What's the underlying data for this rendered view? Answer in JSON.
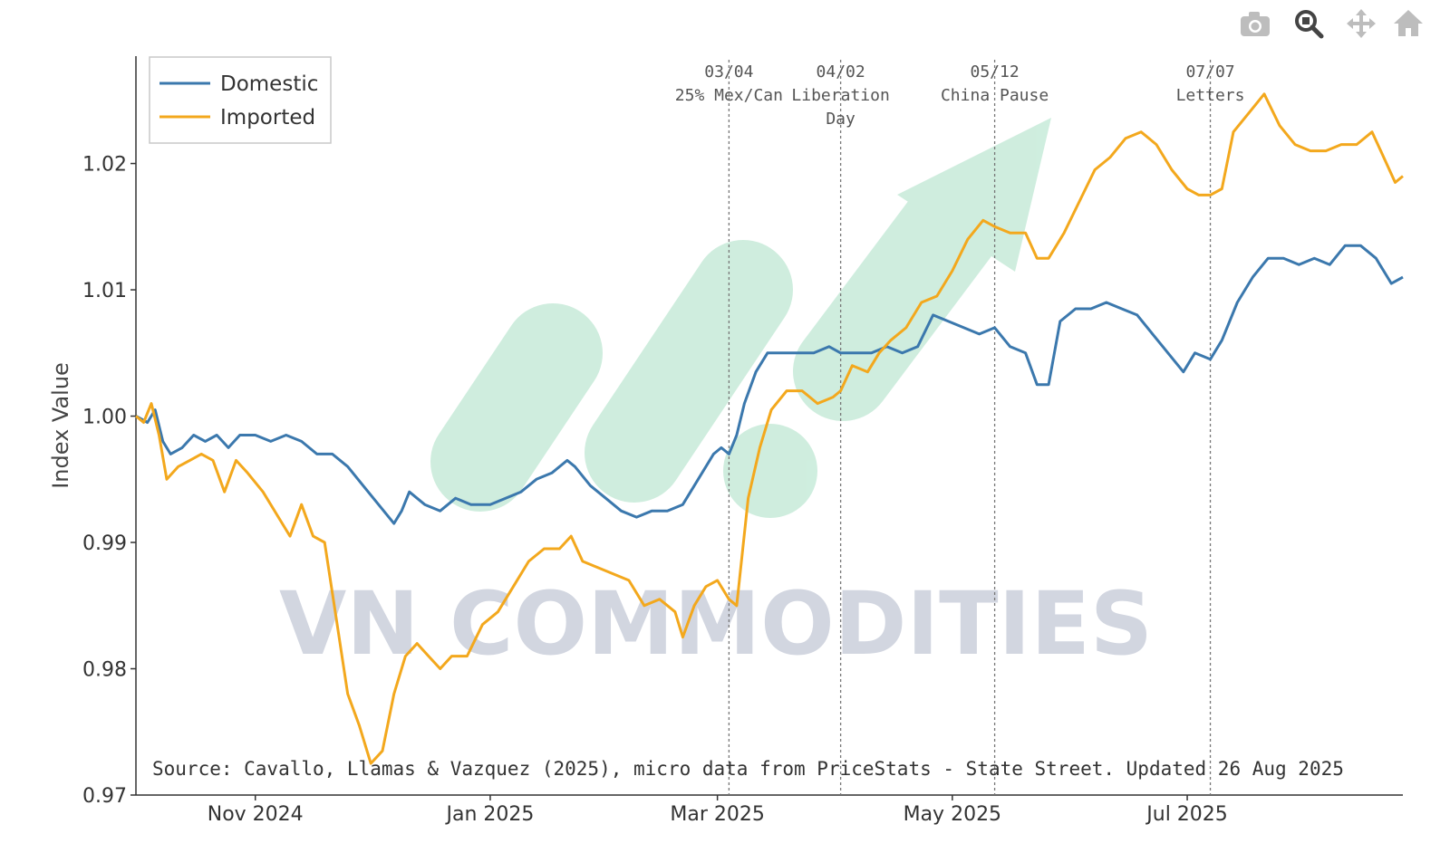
{
  "modebar": {
    "icons": [
      "camera-icon",
      "zoom-icon",
      "pan-icon",
      "home-icon"
    ],
    "active": "zoom-icon"
  },
  "watermark": {
    "text": "VN COMMODITIES",
    "logo_color": "#a8e0c4"
  },
  "source_note": "Source: Cavallo, Llamas & Vazquez (2025), micro data from PriceStats - State Street. Updated 26 Aug 2025",
  "chart_data": {
    "type": "line",
    "ylabel": "Index Value",
    "xlabel": "",
    "ylim": [
      0.97,
      1.0285
    ],
    "xlim": [
      "2024-10-01",
      "2025-08-26"
    ],
    "x_ticks": [
      {
        "date": "2024-11-01",
        "label": "Nov 2024"
      },
      {
        "date": "2025-01-01",
        "label": "Jan 2025"
      },
      {
        "date": "2025-03-01",
        "label": "Mar 2025"
      },
      {
        "date": "2025-05-01",
        "label": "May 2025"
      },
      {
        "date": "2025-07-01",
        "label": "Jul 2025"
      }
    ],
    "y_ticks": [
      {
        "value": 0.97,
        "label": "0.97"
      },
      {
        "value": 0.98,
        "label": "0.98"
      },
      {
        "value": 0.99,
        "label": "0.99"
      },
      {
        "value": 1.0,
        "label": "1.00"
      },
      {
        "value": 1.01,
        "label": "1.01"
      },
      {
        "value": 1.02,
        "label": "1.02"
      }
    ],
    "grid": false,
    "legend_position": "top-left",
    "annotations": [
      {
        "date": "2025-03-04",
        "lines": [
          "03/04",
          "25% Mex/Can"
        ]
      },
      {
        "date": "2025-04-02",
        "lines": [
          "04/02",
          "Liberation",
          "Day"
        ]
      },
      {
        "date": "2025-05-12",
        "lines": [
          "05/12",
          "China Pause"
        ]
      },
      {
        "date": "2025-07-07",
        "lines": [
          "07/07",
          "Letters"
        ]
      }
    ],
    "series": [
      {
        "name": "Domestic",
        "color": "#3b78ad",
        "points": [
          [
            "2024-10-01",
            1.0
          ],
          [
            "2024-10-04",
            0.9995
          ],
          [
            "2024-10-06",
            1.0005
          ],
          [
            "2024-10-08",
            0.998
          ],
          [
            "2024-10-10",
            0.997
          ],
          [
            "2024-10-13",
            0.9975
          ],
          [
            "2024-10-16",
            0.9985
          ],
          [
            "2024-10-19",
            0.998
          ],
          [
            "2024-10-22",
            0.9985
          ],
          [
            "2024-10-25",
            0.9975
          ],
          [
            "2024-10-28",
            0.9985
          ],
          [
            "2024-11-01",
            0.9985
          ],
          [
            "2024-11-05",
            0.998
          ],
          [
            "2024-11-09",
            0.9985
          ],
          [
            "2024-11-13",
            0.998
          ],
          [
            "2024-11-17",
            0.997
          ],
          [
            "2024-11-21",
            0.997
          ],
          [
            "2024-11-25",
            0.996
          ],
          [
            "2024-11-29",
            0.9945
          ],
          [
            "2024-12-03",
            0.993
          ],
          [
            "2024-12-07",
            0.9915
          ],
          [
            "2024-12-09",
            0.9925
          ],
          [
            "2024-12-11",
            0.994
          ],
          [
            "2024-12-15",
            0.993
          ],
          [
            "2024-12-19",
            0.9925
          ],
          [
            "2024-12-23",
            0.9935
          ],
          [
            "2024-12-27",
            0.993
          ],
          [
            "2025-01-01",
            0.993
          ],
          [
            "2025-01-05",
            0.9935
          ],
          [
            "2025-01-09",
            0.994
          ],
          [
            "2025-01-13",
            0.995
          ],
          [
            "2025-01-17",
            0.9955
          ],
          [
            "2025-01-21",
            0.9965
          ],
          [
            "2025-01-23",
            0.996
          ],
          [
            "2025-01-27",
            0.9945
          ],
          [
            "2025-01-31",
            0.9935
          ],
          [
            "2025-02-04",
            0.9925
          ],
          [
            "2025-02-08",
            0.992
          ],
          [
            "2025-02-12",
            0.9925
          ],
          [
            "2025-02-16",
            0.9925
          ],
          [
            "2025-02-20",
            0.993
          ],
          [
            "2025-02-24",
            0.995
          ],
          [
            "2025-02-28",
            0.997
          ],
          [
            "2025-03-02",
            0.9975
          ],
          [
            "2025-03-04",
            0.997
          ],
          [
            "2025-03-06",
            0.9985
          ],
          [
            "2025-03-08",
            1.001
          ],
          [
            "2025-03-11",
            1.0035
          ],
          [
            "2025-03-14",
            1.005
          ],
          [
            "2025-03-18",
            1.005
          ],
          [
            "2025-03-22",
            1.005
          ],
          [
            "2025-03-26",
            1.005
          ],
          [
            "2025-03-30",
            1.0055
          ],
          [
            "2025-04-02",
            1.005
          ],
          [
            "2025-04-06",
            1.005
          ],
          [
            "2025-04-10",
            1.005
          ],
          [
            "2025-04-14",
            1.0055
          ],
          [
            "2025-04-18",
            1.005
          ],
          [
            "2025-04-22",
            1.0055
          ],
          [
            "2025-04-26",
            1.008
          ],
          [
            "2025-04-30",
            1.0075
          ],
          [
            "2025-05-04",
            1.007
          ],
          [
            "2025-05-08",
            1.0065
          ],
          [
            "2025-05-12",
            1.007
          ],
          [
            "2025-05-16",
            1.0055
          ],
          [
            "2025-05-20",
            1.005
          ],
          [
            "2025-05-23",
            1.0025
          ],
          [
            "2025-05-26",
            1.0025
          ],
          [
            "2025-05-29",
            1.0075
          ],
          [
            "2025-06-02",
            1.0085
          ],
          [
            "2025-06-06",
            1.0085
          ],
          [
            "2025-06-10",
            1.009
          ],
          [
            "2025-06-14",
            1.0085
          ],
          [
            "2025-06-18",
            1.008
          ],
          [
            "2025-06-22",
            1.0065
          ],
          [
            "2025-06-26",
            1.005
          ],
          [
            "2025-06-30",
            1.0035
          ],
          [
            "2025-07-03",
            1.005
          ],
          [
            "2025-07-07",
            1.0045
          ],
          [
            "2025-07-10",
            1.006
          ],
          [
            "2025-07-14",
            1.009
          ],
          [
            "2025-07-18",
            1.011
          ],
          [
            "2025-07-22",
            1.0125
          ],
          [
            "2025-07-26",
            1.0125
          ],
          [
            "2025-07-30",
            1.012
          ],
          [
            "2025-08-03",
            1.0125
          ],
          [
            "2025-08-07",
            1.012
          ],
          [
            "2025-08-11",
            1.0135
          ],
          [
            "2025-08-15",
            1.0135
          ],
          [
            "2025-08-19",
            1.0125
          ],
          [
            "2025-08-23",
            1.0105
          ],
          [
            "2025-08-26",
            1.011
          ]
        ]
      },
      {
        "name": "Imported",
        "color": "#f3a81d",
        "points": [
          [
            "2024-10-01",
            1.0
          ],
          [
            "2024-10-03",
            0.9995
          ],
          [
            "2024-10-05",
            1.001
          ],
          [
            "2024-10-07",
            0.9985
          ],
          [
            "2024-10-09",
            0.995
          ],
          [
            "2024-10-12",
            0.996
          ],
          [
            "2024-10-15",
            0.9965
          ],
          [
            "2024-10-18",
            0.997
          ],
          [
            "2024-10-21",
            0.9965
          ],
          [
            "2024-10-24",
            0.994
          ],
          [
            "2024-10-27",
            0.9965
          ],
          [
            "2024-10-30",
            0.9955
          ],
          [
            "2024-11-03",
            0.994
          ],
          [
            "2024-11-07",
            0.992
          ],
          [
            "2024-11-10",
            0.9905
          ],
          [
            "2024-11-13",
            0.993
          ],
          [
            "2024-11-16",
            0.9905
          ],
          [
            "2024-11-19",
            0.99
          ],
          [
            "2024-11-22",
            0.984
          ],
          [
            "2024-11-25",
            0.978
          ],
          [
            "2024-11-28",
            0.9755
          ],
          [
            "2024-12-01",
            0.9725
          ],
          [
            "2024-12-04",
            0.9735
          ],
          [
            "2024-12-07",
            0.978
          ],
          [
            "2024-12-10",
            0.981
          ],
          [
            "2024-12-13",
            0.982
          ],
          [
            "2024-12-16",
            0.981
          ],
          [
            "2024-12-19",
            0.98
          ],
          [
            "2024-12-22",
            0.981
          ],
          [
            "2024-12-26",
            0.981
          ],
          [
            "2024-12-30",
            0.9835
          ],
          [
            "2025-01-03",
            0.9845
          ],
          [
            "2025-01-07",
            0.9865
          ],
          [
            "2025-01-11",
            0.9885
          ],
          [
            "2025-01-15",
            0.9895
          ],
          [
            "2025-01-19",
            0.9895
          ],
          [
            "2025-01-22",
            0.9905
          ],
          [
            "2025-01-25",
            0.9885
          ],
          [
            "2025-01-29",
            0.988
          ],
          [
            "2025-02-02",
            0.9875
          ],
          [
            "2025-02-06",
            0.987
          ],
          [
            "2025-02-10",
            0.985
          ],
          [
            "2025-02-14",
            0.9855
          ],
          [
            "2025-02-18",
            0.9845
          ],
          [
            "2025-02-20",
            0.9825
          ],
          [
            "2025-02-23",
            0.985
          ],
          [
            "2025-02-26",
            0.9865
          ],
          [
            "2025-03-01",
            0.987
          ],
          [
            "2025-03-04",
            0.9855
          ],
          [
            "2025-03-06",
            0.985
          ],
          [
            "2025-03-09",
            0.9935
          ],
          [
            "2025-03-12",
            0.9975
          ],
          [
            "2025-03-15",
            1.0005
          ],
          [
            "2025-03-19",
            1.002
          ],
          [
            "2025-03-23",
            1.002
          ],
          [
            "2025-03-27",
            1.001
          ],
          [
            "2025-03-31",
            1.0015
          ],
          [
            "2025-04-02",
            1.002
          ],
          [
            "2025-04-05",
            1.004
          ],
          [
            "2025-04-09",
            1.0035
          ],
          [
            "2025-04-12",
            1.005
          ],
          [
            "2025-04-15",
            1.006
          ],
          [
            "2025-04-19",
            1.007
          ],
          [
            "2025-04-23",
            1.009
          ],
          [
            "2025-04-27",
            1.0095
          ],
          [
            "2025-05-01",
            1.0115
          ],
          [
            "2025-05-05",
            1.014
          ],
          [
            "2025-05-09",
            1.0155
          ],
          [
            "2025-05-12",
            1.015
          ],
          [
            "2025-05-16",
            1.0145
          ],
          [
            "2025-05-20",
            1.0145
          ],
          [
            "2025-05-23",
            1.0125
          ],
          [
            "2025-05-26",
            1.0125
          ],
          [
            "2025-05-30",
            1.0145
          ],
          [
            "2025-06-03",
            1.017
          ],
          [
            "2025-06-07",
            1.0195
          ],
          [
            "2025-06-11",
            1.0205
          ],
          [
            "2025-06-15",
            1.022
          ],
          [
            "2025-06-19",
            1.0225
          ],
          [
            "2025-06-23",
            1.0215
          ],
          [
            "2025-06-27",
            1.0195
          ],
          [
            "2025-07-01",
            1.018
          ],
          [
            "2025-07-04",
            1.0175
          ],
          [
            "2025-07-07",
            1.0175
          ],
          [
            "2025-07-10",
            1.018
          ],
          [
            "2025-07-13",
            1.0225
          ],
          [
            "2025-07-17",
            1.024
          ],
          [
            "2025-07-21",
            1.0255
          ],
          [
            "2025-07-25",
            1.023
          ],
          [
            "2025-07-29",
            1.0215
          ],
          [
            "2025-08-02",
            1.021
          ],
          [
            "2025-08-06",
            1.021
          ],
          [
            "2025-08-10",
            1.0215
          ],
          [
            "2025-08-14",
            1.0215
          ],
          [
            "2025-08-18",
            1.0225
          ],
          [
            "2025-08-21",
            1.0205
          ],
          [
            "2025-08-24",
            1.0185
          ],
          [
            "2025-08-26",
            1.019
          ]
        ]
      }
    ]
  }
}
